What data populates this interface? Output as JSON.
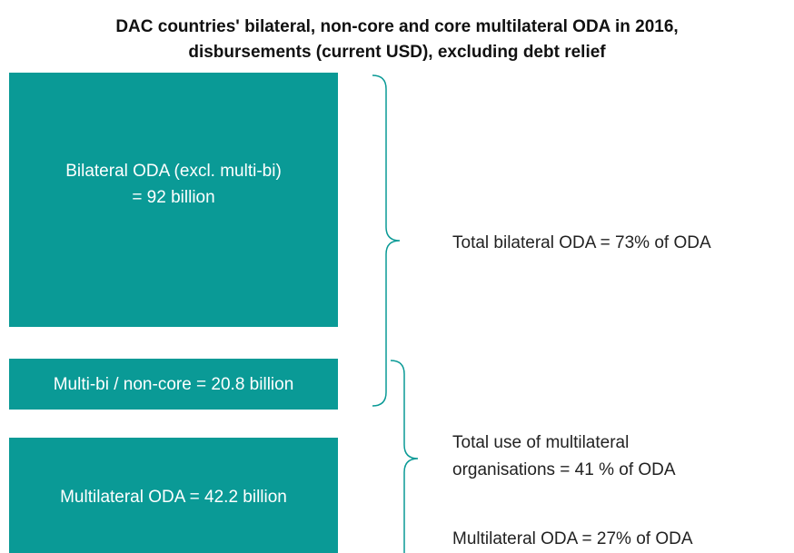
{
  "title": {
    "lines": [
      "DAC countries' bilateral, non-core and core multilateral ODA in 2016,",
      "disbursements (current USD), excluding debt relief"
    ]
  },
  "boxes": [
    {
      "lines": [
        "Bilateral ODA (excl. multi-bi)",
        "= 92 billion"
      ]
    },
    {
      "lines": [
        "Multi-bi / non-core = 20.8 billion"
      ]
    },
    {
      "lines": [
        "Multilateral ODA = 42.2 billion"
      ]
    }
  ],
  "annotations": [
    {
      "lines": [
        "Total bilateral ODA = 73% of ODA"
      ]
    },
    {
      "lines": [
        "Total use of multilateral",
        "organisations = 41 % of ODA"
      ]
    },
    {
      "lines": [
        "Multilateral ODA = 27% of ODA"
      ]
    }
  ]
}
